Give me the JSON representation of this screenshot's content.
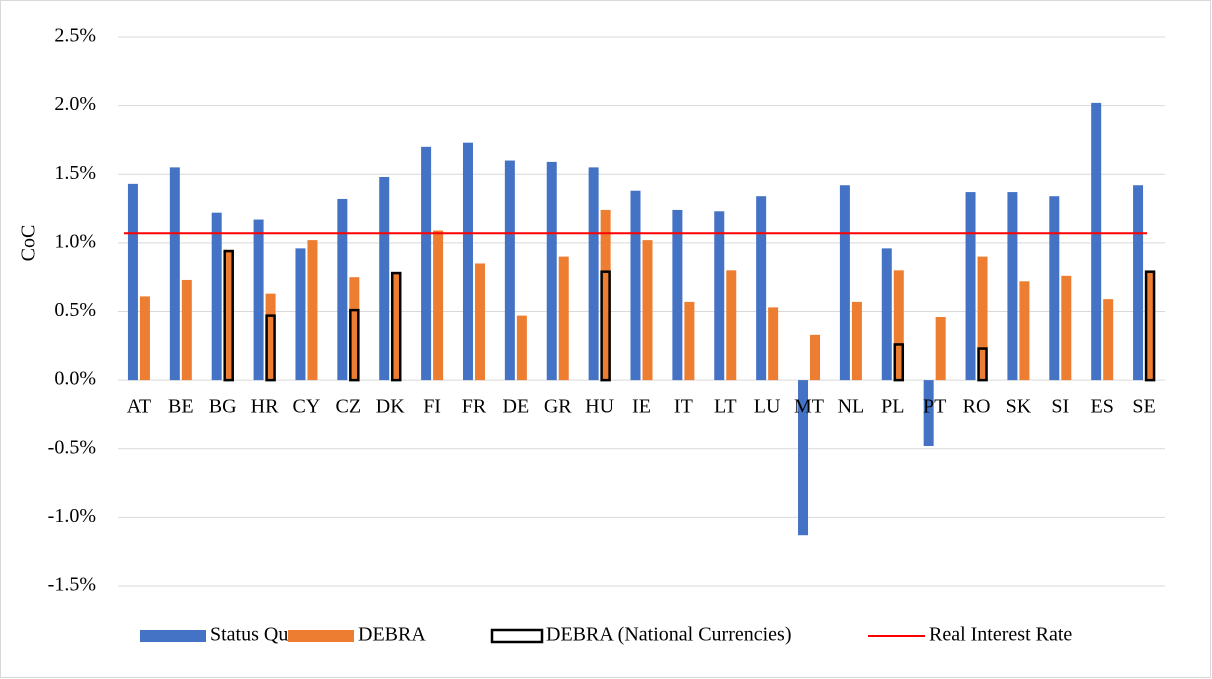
{
  "chart_data": {
    "type": "bar",
    "y_label": "CoC",
    "categories": [
      "AT",
      "BE",
      "BG",
      "HR",
      "CY",
      "CZ",
      "DK",
      "FI",
      "FR",
      "DE",
      "GR",
      "HU",
      "IE",
      "IT",
      "LT",
      "LU",
      "MT",
      "NL",
      "PL",
      "PT",
      "RO",
      "SK",
      "SI",
      "ES",
      "SE"
    ],
    "series": [
      {
        "name": "Status Quo",
        "color": "#4472c4",
        "style": "filled",
        "values": [
          1.43,
          1.55,
          1.22,
          1.17,
          0.96,
          1.32,
          1.48,
          1.7,
          1.73,
          1.6,
          1.59,
          1.55,
          1.38,
          1.24,
          1.23,
          1.34,
          -1.13,
          1.42,
          0.96,
          -0.48,
          1.37,
          1.37,
          1.34,
          2.02,
          1.42
        ]
      },
      {
        "name": "DEBRA",
        "color": "#ed7d31",
        "style": "filled",
        "values": [
          0.61,
          0.73,
          0.95,
          0.63,
          1.02,
          0.75,
          0.78,
          1.09,
          0.85,
          0.47,
          0.9,
          1.24,
          1.02,
          0.57,
          0.8,
          0.53,
          0.33,
          0.57,
          0.8,
          0.46,
          0.9,
          0.72,
          0.76,
          0.59,
          0.79
        ]
      },
      {
        "name": "DEBRA (National Currencies)",
        "color": "#000000",
        "style": "outline",
        "values": [
          null,
          null,
          0.94,
          0.47,
          null,
          0.51,
          0.78,
          null,
          null,
          null,
          null,
          0.79,
          null,
          null,
          null,
          null,
          null,
          null,
          0.26,
          null,
          0.23,
          null,
          null,
          null,
          0.79
        ]
      }
    ],
    "reference_line": {
      "name": "Real Interest Rate",
      "value": 1.07,
      "color": "#ff0000"
    },
    "ylim": [
      -1.5,
      2.5
    ],
    "yticks": [
      {
        "value": -1.5,
        "label": "-1.5%"
      },
      {
        "value": -1.0,
        "label": "-1.0%"
      },
      {
        "value": -0.5,
        "label": "-0.5%"
      },
      {
        "value": 0,
        "label": "0.0%"
      },
      {
        "value": 0.5,
        "label": "0.5%"
      },
      {
        "value": 1.0,
        "label": "1.0%"
      },
      {
        "value": 1.5,
        "label": "1.5%"
      },
      {
        "value": 2.0,
        "label": "2.0%"
      },
      {
        "value": 2.5,
        "label": "2.5%"
      }
    ],
    "grid": true,
    "legend": "bottom"
  }
}
